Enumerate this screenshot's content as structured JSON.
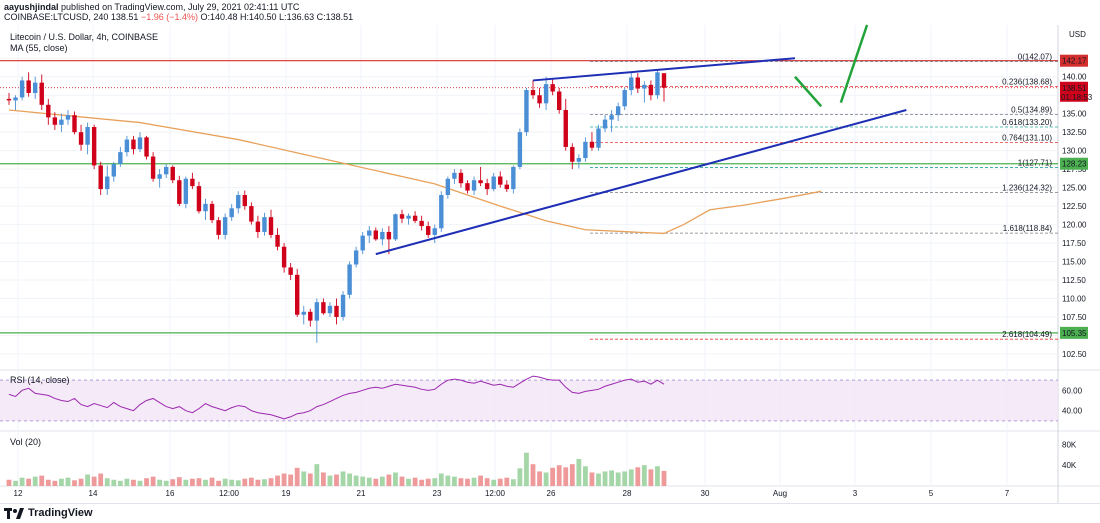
{
  "header": {
    "user": "aayushjindal",
    "published": "published on TradingView.com, July 29, 2021 02:41:11 UTC",
    "symbol_line": "COINBASE:LTCUSD, 240",
    "last": "138.51",
    "change": "−1.96 (−1.4%)",
    "ohlc": "O:140.48 H:140.50 L:136.63 C:138.51"
  },
  "legend": {
    "title": "Litecoin / U.S. Dollar, 4h, COINBASE",
    "ma": "MA (55, close)",
    "rsi": "RSI (14, close)",
    "vol": "Vol (20)"
  },
  "footer": {
    "brand": "TradingView"
  },
  "colors": {
    "up": "#26a69a",
    "up_candle": "#4a8fd6",
    "down": "#d0021b",
    "ma": "#e8a15a",
    "trend": "#1e2fb5",
    "arrow": "#22a33a",
    "level": "#4caf50",
    "rsi": "#9c27b0"
  },
  "chart_data": {
    "type": "candlestick",
    "title": "Litecoin / U.S. Dollar, 4h, COINBASE",
    "price_range": [
      101,
      147
    ],
    "price_ticks": [
      "142.50",
      "140.00",
      "137.50",
      "135.00",
      "132.50",
      "130.00",
      "127.50",
      "125.00",
      "122.50",
      "120.00",
      "117.50",
      "115.00",
      "112.50",
      "110.00",
      "107.50",
      "105.00",
      "102.50"
    ],
    "x_labels": [
      "12",
      "14",
      "16",
      "12:00",
      "19",
      "21",
      "23",
      "12:00",
      "26",
      "28",
      "30",
      "Aug",
      "3",
      "5",
      "7"
    ],
    "candles": [
      [
        137.0,
        137.8,
        136.2,
        136.8
      ],
      [
        136.8,
        137.5,
        135.5,
        137.2
      ],
      [
        137.2,
        140.0,
        136.8,
        139.5
      ],
      [
        139.5,
        140.6,
        137.3,
        137.8
      ],
      [
        137.8,
        140.0,
        137.0,
        139.2
      ],
      [
        139.2,
        140.3,
        135.5,
        136.2
      ],
      [
        136.2,
        137.0,
        133.5,
        134.5
      ],
      [
        134.5,
        135.2,
        132.8,
        133.5
      ],
      [
        133.5,
        135.0,
        132.5,
        134.2
      ],
      [
        134.2,
        135.5,
        133.5,
        134.8
      ],
      [
        134.8,
        135.3,
        132.2,
        132.5
      ],
      [
        132.5,
        133.5,
        130.0,
        130.8
      ],
      [
        130.8,
        133.8,
        129.5,
        133.2
      ],
      [
        133.2,
        133.5,
        127.5,
        128.0
      ],
      [
        128.0,
        128.5,
        124.0,
        124.8
      ],
      [
        124.8,
        128.0,
        124.0,
        126.5
      ],
      [
        126.5,
        128.5,
        125.8,
        128.2
      ],
      [
        128.2,
        130.5,
        127.8,
        129.8
      ],
      [
        129.8,
        132.0,
        129.2,
        131.5
      ],
      [
        131.5,
        132.0,
        129.5,
        130.2
      ],
      [
        130.2,
        132.5,
        129.8,
        131.8
      ],
      [
        131.8,
        132.0,
        128.8,
        129.2
      ],
      [
        129.2,
        129.8,
        125.8,
        126.2
      ],
      [
        126.2,
        127.5,
        125.0,
        126.8
      ],
      [
        126.8,
        128.2,
        126.3,
        127.8
      ],
      [
        127.8,
        128.0,
        125.6,
        126.0
      ],
      [
        126.0,
        126.6,
        122.5,
        122.8
      ],
      [
        122.8,
        126.5,
        122.2,
        126.2
      ],
      [
        126.2,
        127.0,
        124.8,
        125.2
      ],
      [
        125.2,
        125.8,
        121.5,
        121.8
      ],
      [
        121.8,
        123.5,
        120.6,
        122.8
      ],
      [
        122.8,
        123.2,
        120.2,
        120.6
      ],
      [
        120.6,
        121.0,
        118.0,
        118.6
      ],
      [
        118.6,
        121.5,
        118.0,
        121.0
      ],
      [
        121.0,
        122.8,
        120.5,
        122.2
      ],
      [
        122.2,
        124.5,
        121.5,
        124.0
      ],
      [
        124.0,
        124.6,
        122.0,
        122.5
      ],
      [
        122.5,
        123.0,
        120.0,
        120.4
      ],
      [
        120.4,
        121.2,
        118.2,
        119.0
      ],
      [
        119.0,
        121.6,
        118.5,
        121.0
      ],
      [
        121.0,
        122.0,
        118.2,
        118.6
      ],
      [
        118.6,
        119.5,
        116.5,
        117.0
      ],
      [
        117.0,
        117.5,
        113.5,
        114.2
      ],
      [
        114.2,
        114.8,
        112.5,
        113.2
      ],
      [
        113.2,
        114.0,
        107.5,
        107.8
      ],
      [
        107.8,
        109.0,
        106.5,
        108.2
      ],
      [
        108.2,
        108.6,
        106.2,
        107.0
      ],
      [
        107.0,
        110.0,
        104.0,
        109.5
      ],
      [
        109.5,
        110.0,
        107.8,
        108.0
      ],
      [
        108.0,
        109.5,
        107.5,
        109.0
      ],
      [
        109.0,
        110.0,
        106.5,
        107.5
      ],
      [
        107.5,
        111.0,
        107.0,
        110.5
      ],
      [
        110.5,
        115.0,
        110.0,
        114.6
      ],
      [
        114.6,
        117.0,
        114.2,
        116.5
      ],
      [
        116.5,
        119.0,
        116.0,
        118.5
      ],
      [
        118.5,
        119.8,
        117.5,
        119.2
      ],
      [
        119.2,
        119.6,
        117.8,
        118.0
      ],
      [
        118.0,
        119.5,
        117.2,
        119.0
      ],
      [
        119.0,
        119.8,
        116.0,
        118.0
      ],
      [
        118.0,
        121.5,
        117.8,
        121.4
      ],
      [
        121.4,
        122.0,
        120.2,
        120.8
      ],
      [
        120.8,
        121.5,
        120.0,
        121.2
      ],
      [
        121.2,
        121.8,
        120.2,
        120.5
      ],
      [
        120.5,
        121.2,
        119.2,
        119.8
      ],
      [
        119.8,
        120.4,
        118.2,
        118.6
      ],
      [
        118.6,
        120.0,
        117.5,
        119.5
      ],
      [
        119.5,
        124.5,
        119.0,
        124.0
      ],
      [
        124.0,
        126.5,
        123.5,
        126.2
      ],
      [
        126.2,
        127.5,
        125.5,
        127.0
      ],
      [
        127.0,
        127.5,
        125.0,
        125.6
      ],
      [
        125.6,
        126.0,
        124.2,
        124.6
      ],
      [
        124.6,
        126.5,
        124.0,
        126.0
      ],
      [
        126.0,
        127.8,
        125.2,
        125.6
      ],
      [
        125.6,
        126.2,
        124.0,
        124.8
      ],
      [
        124.8,
        127.0,
        124.5,
        126.5
      ],
      [
        126.5,
        127.2,
        125.0,
        125.4
      ],
      [
        125.4,
        126.0,
        124.4,
        124.8
      ],
      [
        124.8,
        128.0,
        124.2,
        127.8
      ],
      [
        127.8,
        133.0,
        127.5,
        132.5
      ],
      [
        132.5,
        138.5,
        132.0,
        138.2
      ],
      [
        138.2,
        139.5,
        137.0,
        137.5
      ],
      [
        137.5,
        138.5,
        135.8,
        136.4
      ],
      [
        136.4,
        140.0,
        135.5,
        139.0
      ],
      [
        139.0,
        139.8,
        137.5,
        138.0
      ],
      [
        138.0,
        138.5,
        135.0,
        135.5
      ],
      [
        135.5,
        137.0,
        130.0,
        130.5
      ],
      [
        130.5,
        131.0,
        127.5,
        128.5
      ],
      [
        128.5,
        129.5,
        127.6,
        129.0
      ],
      [
        129.0,
        131.8,
        128.5,
        131.2
      ],
      [
        131.2,
        132.5,
        130.0,
        130.4
      ],
      [
        130.4,
        133.5,
        130.0,
        133.0
      ],
      [
        133.0,
        134.8,
        132.5,
        134.2
      ],
      [
        134.2,
        135.5,
        132.5,
        134.8
      ],
      [
        134.8,
        136.5,
        134.0,
        136.0
      ],
      [
        136.0,
        138.5,
        135.5,
        138.2
      ],
      [
        138.2,
        140.5,
        137.5,
        139.9
      ],
      [
        139.9,
        140.5,
        137.8,
        138.4
      ],
      [
        138.4,
        139.4,
        136.5,
        138.9
      ],
      [
        138.9,
        139.5,
        136.8,
        137.5
      ],
      [
        137.5,
        141.0,
        137.0,
        140.6
      ],
      [
        140.48,
        140.5,
        136.63,
        138.51
      ]
    ],
    "ma55_points": [
      [
        0,
        135.5
      ],
      [
        20,
        133.8
      ],
      [
        35,
        131.5
      ],
      [
        50,
        128.5
      ],
      [
        65,
        125.5
      ],
      [
        75,
        122.5
      ],
      [
        82,
        120.5
      ],
      [
        88,
        119.3
      ],
      [
        95,
        119.0
      ],
      [
        100,
        118.8
      ],
      [
        103,
        120.0
      ],
      [
        107,
        122.0
      ],
      [
        112,
        122.6
      ],
      [
        118,
        123.5
      ],
      [
        124,
        124.5
      ]
    ],
    "fib_levels": [
      {
        "ratio": "0",
        "value": "142.07",
        "price": 142.07,
        "color": "#787b86"
      },
      {
        "ratio": "0.236",
        "value": "138.68",
        "price": 138.68,
        "color": "#e53935"
      },
      {
        "ratio": "0.5",
        "value": "134.89",
        "price": 134.89,
        "color": "#787b86"
      },
      {
        "ratio": "0.618",
        "value": "133.20",
        "price": 133.2,
        "color": "#26a69a"
      },
      {
        "ratio": "0.764",
        "value": "131.10",
        "price": 131.1,
        "color": "#e53935"
      },
      {
        "ratio": "1",
        "value": "127.71",
        "price": 127.71,
        "color": "#26a69a"
      },
      {
        "ratio": "1.236",
        "value": "124.32",
        "price": 124.32,
        "color": "#787b86"
      },
      {
        "ratio": "1.618",
        "value": "118.84",
        "price": 118.84,
        "color": "#787b86"
      },
      {
        "ratio": "2.618",
        "value": "104.49",
        "price": 104.49,
        "color": "#e53935"
      }
    ],
    "horizontal_levels": [
      {
        "label": "142.17",
        "price": 142.17,
        "color": "#d32f2f"
      },
      {
        "label": "128.23",
        "price": 128.23,
        "color": "#4caf50"
      },
      {
        "label": "105.35",
        "price": 105.35,
        "color": "#4caf50"
      }
    ],
    "last_price": {
      "label": "138.51",
      "countdown": "01:18:53",
      "price": 138.51
    },
    "trendlines": {
      "support": [
        [
          56,
          116.0
        ],
        [
          137,
          135.5
        ]
      ],
      "resistance": [
        [
          80,
          139.5
        ],
        [
          120,
          142.5
        ]
      ],
      "projection": [
        [
          120,
          140.0
        ],
        [
          124,
          136.0
        ],
        [
          127,
          136.5
        ],
        [
          131,
          147.0
        ]
      ]
    },
    "rsi": {
      "values": [
        56,
        54,
        60,
        62,
        57,
        56,
        55,
        52,
        50,
        49,
        52,
        46,
        44,
        47,
        45,
        43,
        48,
        44,
        42,
        40,
        46,
        50,
        52,
        48,
        44,
        42,
        44,
        40,
        38,
        42,
        47,
        44,
        42,
        40,
        43,
        45,
        44,
        40,
        38,
        37,
        36,
        34,
        32,
        34,
        37,
        38,
        40,
        44,
        46,
        49,
        52,
        55,
        57,
        58,
        60,
        62,
        63,
        62,
        64,
        66,
        65,
        64,
        63,
        61,
        60,
        61,
        66,
        70,
        71,
        70,
        68,
        67,
        69,
        67,
        65,
        66,
        64,
        63,
        67,
        71,
        74,
        73,
        71,
        70,
        70,
        63,
        58,
        57,
        59,
        60,
        61,
        64,
        66,
        68,
        70,
        71,
        68,
        69,
        66,
        70,
        66
      ],
      "ticks": [
        "60.00",
        "40.00"
      ],
      "range": [
        20,
        80
      ],
      "band": [
        30,
        70
      ]
    },
    "volume": {
      "values": [
        12,
        10,
        16,
        14,
        18,
        20,
        12,
        10,
        14,
        16,
        11,
        14,
        22,
        18,
        24,
        15,
        12,
        10,
        14,
        12,
        10,
        15,
        18,
        12,
        10,
        13,
        17,
        12,
        14,
        15,
        12,
        16,
        10,
        14,
        12,
        11,
        14,
        16,
        12,
        13,
        15,
        20,
        24,
        22,
        35,
        28,
        24,
        42,
        26,
        20,
        22,
        28,
        24,
        20,
        18,
        16,
        14,
        18,
        22,
        26,
        18,
        14,
        16,
        12,
        14,
        15,
        24,
        20,
        18,
        15,
        14,
        16,
        20,
        15,
        12,
        14,
        16,
        13,
        34,
        64,
        42,
        28,
        26,
        35,
        40,
        36,
        42,
        52,
        38,
        26,
        24,
        28,
        30,
        26,
        28,
        32,
        36,
        40,
        32,
        38,
        29
      ],
      "ticks": [
        "80K",
        "40K"
      ],
      "max": 100
    },
    "y_axis_unit": "USD"
  }
}
